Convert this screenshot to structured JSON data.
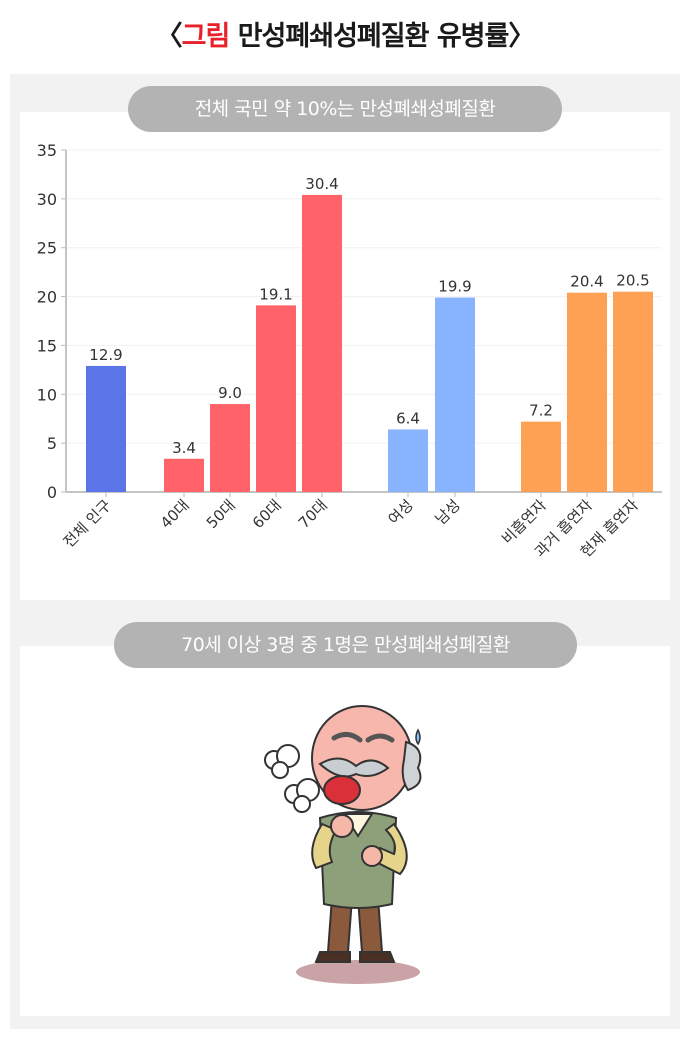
{
  "header": {
    "bracket_open": "〈",
    "accent": "그림",
    "title": " 만성폐쇄성폐질환 유병률",
    "bracket_close": "〉"
  },
  "section1": {
    "label": "전체 국민 약 10%는 만성폐쇄성폐질환"
  },
  "section2": {
    "label": "70세 이상 3명 중 1명은 만성폐쇄성폐질환"
  },
  "colors": {
    "total": "#5b74e8",
    "age": "#ff6268",
    "sex": "#88b4ff",
    "smoking": "#ffa155"
  },
  "illustration": {
    "icon": "coughing-elderly-man-icon"
  },
  "chart_data": {
    "type": "bar",
    "ylim": [
      0,
      35
    ],
    "yticks": [
      0,
      5,
      10,
      15,
      20,
      25,
      30,
      35
    ],
    "grid": true,
    "categories": [
      "전체 인구",
      "40대",
      "50대",
      "60대",
      "70대",
      "여성",
      "남성",
      "비흡연자",
      "과거 흡연자",
      "현재 흡연자"
    ],
    "values": [
      12.9,
      3.4,
      9.0,
      19.1,
      30.4,
      6.4,
      19.9,
      7.2,
      20.4,
      20.5
    ],
    "value_labels": [
      "12.9",
      "3.4",
      "9.0",
      "19.1",
      "30.4",
      "6.4",
      "19.9",
      "7.2",
      "20.4",
      "20.5"
    ],
    "groups": [
      "total",
      "age",
      "age",
      "age",
      "age",
      "sex",
      "sex",
      "smoking",
      "smoking",
      "smoking"
    ]
  }
}
